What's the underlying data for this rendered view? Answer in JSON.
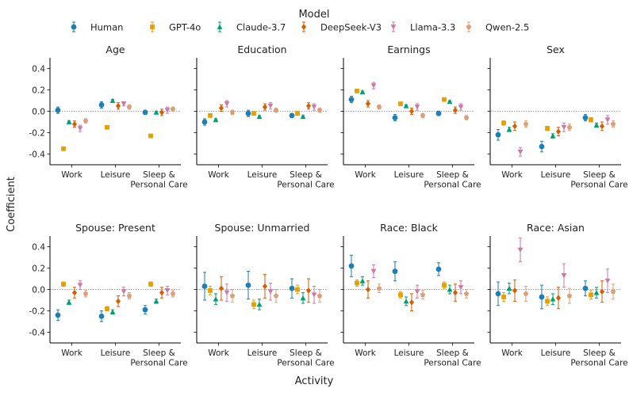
{
  "legend": {
    "title": "Model",
    "entries": [
      {
        "name": "Human",
        "color": "#1f7eb4",
        "marker": "circle"
      },
      {
        "name": "GPT-4o",
        "color": "#e69f00",
        "marker": "square"
      },
      {
        "name": "Claude-3.7",
        "color": "#009e73",
        "marker": "triangle-up"
      },
      {
        "name": "DeepSeek-V3",
        "color": "#d55e00",
        "marker": "diamond"
      },
      {
        "name": "Llama-3.3",
        "color": "#cc79a7",
        "marker": "triangle-down"
      },
      {
        "name": "Qwen-2.5",
        "color": "#dba07a",
        "marker": "pentagon"
      }
    ]
  },
  "labels": {
    "xlabel": "Activity",
    "ylabel": "Coefficient"
  },
  "chart_data": {
    "type": "scatter",
    "ylim": [
      -0.5,
      0.5
    ],
    "yticks": [
      "0.4",
      "0.2",
      "0.0",
      "-0.2",
      "-0.4"
    ],
    "categories": [
      [
        "Work"
      ],
      [
        "Leisure"
      ],
      [
        "Sleep &",
        "Personal Care"
      ]
    ],
    "panels": [
      {
        "title": "Age",
        "series": [
          {
            "model": "Human",
            "values": [
              0.01,
              0.06,
              -0.01
            ],
            "err": [
              0.03,
              0.03,
              0.02
            ]
          },
          {
            "model": "GPT-4o",
            "values": [
              -0.35,
              -0.15,
              -0.23
            ],
            "err": [
              0.01,
              0.01,
              0.01
            ]
          },
          {
            "model": "Claude-3.7",
            "values": [
              -0.1,
              0.1,
              -0.01
            ],
            "err": [
              0.01,
              0.01,
              0.01
            ]
          },
          {
            "model": "DeepSeek-V3",
            "values": [
              -0.12,
              0.05,
              -0.01
            ],
            "err": [
              0.03,
              0.03,
              0.03
            ]
          },
          {
            "model": "Llama-3.3",
            "values": [
              -0.16,
              0.07,
              0.01
            ],
            "err": [
              0.03,
              0.02,
              0.03
            ]
          },
          {
            "model": "Qwen-2.5",
            "values": [
              -0.09,
              0.04,
              0.02
            ],
            "err": [
              0.02,
              0.02,
              0.02
            ]
          }
        ]
      },
      {
        "title": "Education",
        "series": [
          {
            "model": "Human",
            "values": [
              -0.1,
              -0.02,
              -0.04
            ],
            "err": [
              0.03,
              0.03,
              0.02
            ]
          },
          {
            "model": "GPT-4o",
            "values": [
              -0.04,
              -0.02,
              -0.02
            ],
            "err": [
              0.01,
              0.01,
              0.01
            ]
          },
          {
            "model": "Claude-3.7",
            "values": [
              -0.08,
              -0.05,
              -0.05
            ],
            "err": [
              0.01,
              0.01,
              0.01
            ]
          },
          {
            "model": "DeepSeek-V3",
            "values": [
              0.03,
              0.04,
              0.05
            ],
            "err": [
              0.03,
              0.03,
              0.03
            ]
          },
          {
            "model": "Llama-3.3",
            "values": [
              0.07,
              0.05,
              0.04
            ],
            "err": [
              0.03,
              0.03,
              0.03
            ]
          },
          {
            "model": "Qwen-2.5",
            "values": [
              -0.01,
              0.01,
              0.01
            ],
            "err": [
              0.02,
              0.02,
              0.02
            ]
          }
        ]
      },
      {
        "title": "Earnings",
        "series": [
          {
            "model": "Human",
            "values": [
              0.11,
              -0.06,
              -0.02
            ],
            "err": [
              0.03,
              0.03,
              0.02
            ]
          },
          {
            "model": "GPT-4o",
            "values": [
              0.19,
              0.07,
              0.11
            ],
            "err": [
              0.01,
              0.01,
              0.01
            ]
          },
          {
            "model": "Claude-3.7",
            "values": [
              0.18,
              0.05,
              0.09
            ],
            "err": [
              0.01,
              0.01,
              0.01
            ]
          },
          {
            "model": "DeepSeek-V3",
            "values": [
              0.07,
              0.0,
              0.01
            ],
            "err": [
              0.03,
              0.03,
              0.03
            ]
          },
          {
            "model": "Llama-3.3",
            "values": [
              0.24,
              0.04,
              0.04
            ],
            "err": [
              0.03,
              0.03,
              0.03
            ]
          },
          {
            "model": "Qwen-2.5",
            "values": [
              0.04,
              -0.04,
              -0.06
            ],
            "err": [
              0.02,
              0.02,
              0.02
            ]
          }
        ]
      },
      {
        "title": "Sex",
        "series": [
          {
            "model": "Human",
            "values": [
              -0.22,
              -0.33,
              -0.06
            ],
            "err": [
              0.05,
              0.05,
              0.03
            ]
          },
          {
            "model": "GPT-4o",
            "values": [
              -0.11,
              -0.16,
              -0.08
            ],
            "err": [
              0.02,
              0.02,
              0.02
            ]
          },
          {
            "model": "Claude-3.7",
            "values": [
              -0.17,
              -0.23,
              -0.13
            ],
            "err": [
              0.02,
              0.02,
              0.02
            ]
          },
          {
            "model": "DeepSeek-V3",
            "values": [
              -0.14,
              -0.19,
              -0.14
            ],
            "err": [
              0.04,
              0.04,
              0.04
            ]
          },
          {
            "model": "Llama-3.3",
            "values": [
              -0.38,
              -0.15,
              -0.08
            ],
            "err": [
              0.04,
              0.04,
              0.04
            ]
          },
          {
            "model": "Qwen-2.5",
            "values": [
              -0.12,
              -0.15,
              -0.12
            ],
            "err": [
              0.03,
              0.03,
              0.03
            ]
          }
        ]
      },
      {
        "title": "Spouse: Present",
        "series": [
          {
            "model": "Human",
            "values": [
              -0.24,
              -0.25,
              -0.19
            ],
            "err": [
              0.05,
              0.05,
              0.04
            ]
          },
          {
            "model": "GPT-4o",
            "values": [
              0.05,
              -0.18,
              0.05
            ],
            "err": [
              0.02,
              0.02,
              0.02
            ]
          },
          {
            "model": "Claude-3.7",
            "values": [
              -0.12,
              -0.21,
              -0.11
            ],
            "err": [
              0.02,
              0.02,
              0.02
            ]
          },
          {
            "model": "DeepSeek-V3",
            "values": [
              -0.03,
              -0.11,
              -0.03
            ],
            "err": [
              0.05,
              0.05,
              0.05
            ]
          },
          {
            "model": "Llama-3.3",
            "values": [
              0.04,
              -0.02,
              -0.01
            ],
            "err": [
              0.04,
              0.04,
              0.04
            ]
          },
          {
            "model": "Qwen-2.5",
            "values": [
              -0.04,
              -0.06,
              -0.04
            ],
            "err": [
              0.03,
              0.03,
              0.03
            ]
          }
        ]
      },
      {
        "title": "Spouse: Unmarried",
        "series": [
          {
            "model": "Human",
            "values": [
              0.03,
              0.04,
              0.01
            ],
            "err": [
              0.13,
              0.13,
              0.09
            ]
          },
          {
            "model": "GPT-4o",
            "values": [
              -0.01,
              -0.14,
              0.0
            ],
            "err": [
              0.04,
              0.04,
              0.04
            ]
          },
          {
            "model": "Claude-3.7",
            "values": [
              -0.09,
              -0.14,
              -0.08
            ],
            "err": [
              0.05,
              0.05,
              0.05
            ]
          },
          {
            "model": "DeepSeek-V3",
            "values": [
              0.01,
              0.03,
              -0.01
            ],
            "err": [
              0.11,
              0.11,
              0.11
            ]
          },
          {
            "model": "Llama-3.3",
            "values": [
              -0.03,
              -0.02,
              -0.05
            ],
            "err": [
              0.08,
              0.08,
              0.08
            ]
          },
          {
            "model": "Qwen-2.5",
            "values": [
              -0.06,
              -0.06,
              -0.06
            ],
            "err": [
              0.06,
              0.06,
              0.06
            ]
          }
        ]
      },
      {
        "title": "Race: Black",
        "series": [
          {
            "model": "Human",
            "values": [
              0.22,
              0.17,
              0.19
            ],
            "err": [
              0.1,
              0.09,
              0.06
            ]
          },
          {
            "model": "GPT-4o",
            "values": [
              0.06,
              -0.05,
              0.04
            ],
            "err": [
              0.03,
              0.03,
              0.03
            ]
          },
          {
            "model": "Claude-3.7",
            "values": [
              0.08,
              -0.11,
              0.0
            ],
            "err": [
              0.04,
              0.04,
              0.04
            ]
          },
          {
            "model": "DeepSeek-V3",
            "values": [
              0.0,
              -0.12,
              -0.03
            ],
            "err": [
              0.08,
              0.08,
              0.08
            ]
          },
          {
            "model": "Llama-3.3",
            "values": [
              0.17,
              -0.02,
              0.02
            ],
            "err": [
              0.06,
              0.06,
              0.06
            ]
          },
          {
            "model": "Qwen-2.5",
            "values": [
              0.01,
              -0.05,
              -0.04
            ],
            "err": [
              0.04,
              0.04,
              0.04
            ]
          }
        ]
      },
      {
        "title": "Race: Asian",
        "series": [
          {
            "model": "Human",
            "values": [
              -0.04,
              -0.07,
              0.01
            ],
            "err": [
              0.11,
              0.11,
              0.07
            ]
          },
          {
            "model": "GPT-4o",
            "values": [
              -0.07,
              -0.11,
              -0.05
            ],
            "err": [
              0.04,
              0.04,
              0.04
            ]
          },
          {
            "model": "Claude-3.7",
            "values": [
              0.01,
              -0.09,
              -0.03
            ],
            "err": [
              0.05,
              0.05,
              0.05
            ]
          },
          {
            "model": "DeepSeek-V3",
            "values": [
              -0.01,
              -0.08,
              -0.02
            ],
            "err": [
              0.1,
              0.1,
              0.1
            ]
          },
          {
            "model": "Llama-3.3",
            "values": [
              0.37,
              0.13,
              0.08
            ],
            "err": [
              0.11,
              0.11,
              0.11
            ]
          },
          {
            "model": "Qwen-2.5",
            "values": [
              -0.04,
              -0.06,
              -0.02
            ],
            "err": [
              0.07,
              0.07,
              0.07
            ]
          }
        ]
      }
    ]
  }
}
